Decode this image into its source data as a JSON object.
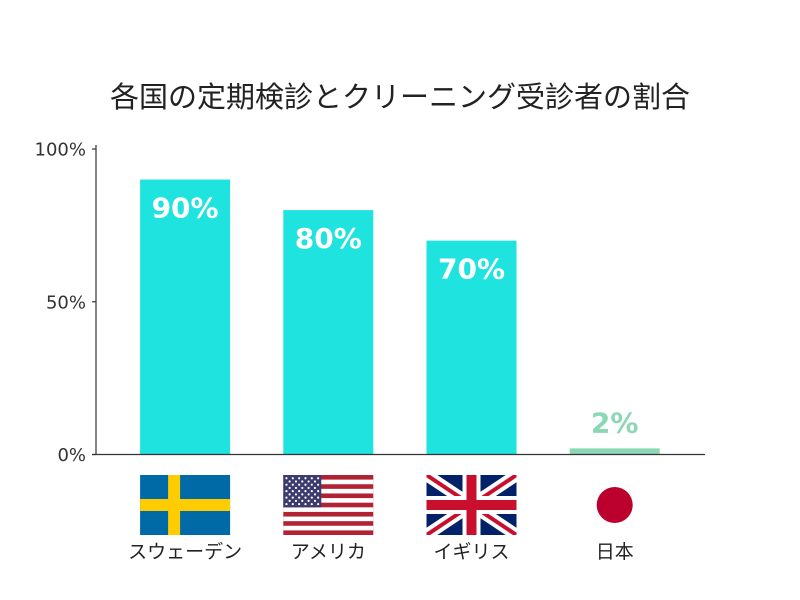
{
  "chart_data": {
    "type": "bar",
    "title": "各国の定期検診とクリーニング受診者の割合",
    "categories": [
      "スウェーデン",
      "アメリカ",
      "イギリス",
      "日本"
    ],
    "values": [
      90,
      80,
      70,
      2
    ],
    "data_labels": [
      "90%",
      "80%",
      "70%",
      "2%"
    ],
    "ylim": [
      0,
      100
    ],
    "yticks": [
      0,
      50,
      100
    ],
    "ytick_labels": [
      "0%",
      "50%",
      "100%"
    ],
    "grid": false,
    "colors": [
      "#1fe3de",
      "#1fe3de",
      "#1fe3de",
      "#8bd8b5"
    ],
    "label_colors": [
      "#ffffff",
      "#ffffff",
      "#ffffff",
      "#8bd8b5"
    ],
    "category_icons": [
      "sweden-flag-icon",
      "usa-flag-icon",
      "uk-flag-icon",
      "japan-flag-icon"
    ]
  }
}
